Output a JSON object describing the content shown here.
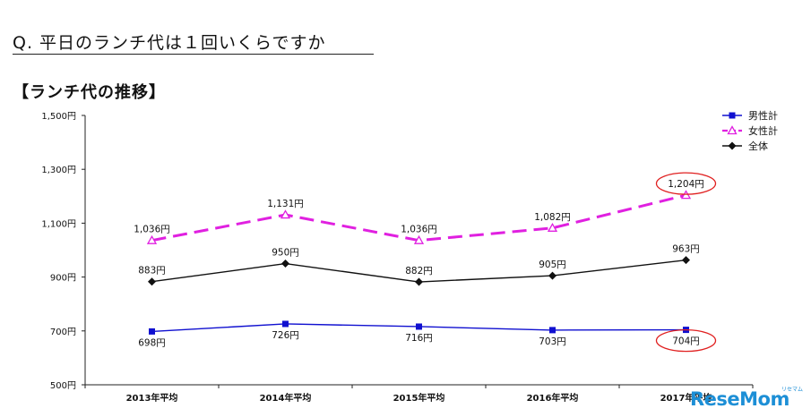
{
  "question": "Q. 平日のランチ代は１回いくらですか",
  "subtitle": "【ランチ代の推移】",
  "brand": {
    "logo": "ReseMom",
    "kana": "リセマム"
  },
  "chart_data": {
    "type": "line",
    "categories": [
      "2013年平均",
      "2014年平均",
      "2015年平均",
      "2016年平均",
      "2017年平均"
    ],
    "y_ticks": [
      "1,500円",
      "1,300円",
      "1,100円",
      "900円",
      "700円",
      "500円"
    ],
    "ylim": [
      500,
      1500
    ],
    "legend_position": "top-right",
    "series": [
      {
        "name": "男性計",
        "values": [
          698,
          726,
          716,
          703,
          704
        ],
        "labels": [
          "698円",
          "726円",
          "716円",
          "703円",
          "704円"
        ],
        "color": "#1010d0",
        "marker": "square",
        "dash": "solid",
        "label_side": "below"
      },
      {
        "name": "女性計",
        "values": [
          1036,
          1131,
          1036,
          1082,
          1204
        ],
        "labels": [
          "1,036円",
          "1,131円",
          "1,036円",
          "1,082円",
          "1,204円"
        ],
        "color": "#e020e0",
        "marker": "triangle",
        "dash": "dashed",
        "label_side": "above"
      },
      {
        "name": "全体",
        "values": [
          883,
          950,
          882,
          905,
          963
        ],
        "labels": [
          "883円",
          "950円",
          "882円",
          "905円",
          "963円"
        ],
        "color": "#111111",
        "marker": "diamond",
        "dash": "solid",
        "label_side": "above"
      }
    ],
    "highlights": [
      {
        "series": 1,
        "point": 4,
        "color": "#e02020"
      },
      {
        "series": 0,
        "point": 4,
        "color": "#e02020"
      }
    ]
  }
}
